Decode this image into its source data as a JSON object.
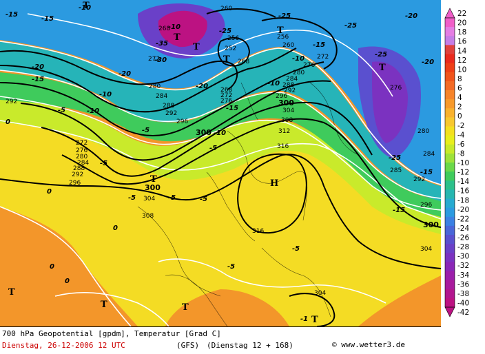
{
  "title": "700 hPa Geopotential [gpdm], Temperatur [Grad C]",
  "date_line": "Dienstag, 26-12-2006  12 UTC",
  "model": "(GFS)",
  "run": "(Dienstag 12 + 168)",
  "copyright": "www.wetter3.de",
  "colorbar": {
    "labels": [
      "22",
      "20",
      "18",
      "16",
      "14",
      "12",
      "10",
      "8",
      "6",
      "4",
      "2",
      "0",
      "-2",
      "-4",
      "-6",
      "-8",
      "-10",
      "-12",
      "-14",
      "-16",
      "-18",
      "-20",
      "-22",
      "-24",
      "-26",
      "-28",
      "-30",
      "-32",
      "-34",
      "-36",
      "-38",
      "-40",
      "-42"
    ],
    "colors": [
      "#f05ec8",
      "#e47de3",
      "#c57de6",
      "#e0413c",
      "#ea2a1d",
      "#ee3f17",
      "#f0541b",
      "#f36b26",
      "#f6842a",
      "#f79a2c",
      "#f9b22f",
      "#f8c82f",
      "#f4e020",
      "#e8ee1c",
      "#c8ea2a",
      "#9ee23a",
      "#6ad84a",
      "#3fcb5c",
      "#2cc08a",
      "#25b6b0",
      "#26aad0",
      "#2b9ae0",
      "#3b80e3",
      "#4a66d8",
      "#5a50cf",
      "#6a40c8",
      "#7b32c0",
      "#8a26b6",
      "#9b1eaa",
      "#a81a9c",
      "#b2168e",
      "#bc1282"
    ]
  },
  "map_labels": {
    "geopotential": [
      {
        "text": "260"
      },
      {
        "text": "256"
      },
      {
        "text": "252"
      },
      {
        "text": "256"
      },
      {
        "text": "260"
      },
      {
        "text": "268"
      },
      {
        "text": "272"
      },
      {
        "text": "276"
      },
      {
        "text": "280"
      },
      {
        "text": "284"
      },
      {
        "text": "288"
      },
      {
        "text": "292"
      },
      {
        "text": "296"
      },
      {
        "text": "300"
      },
      {
        "text": "304"
      },
      {
        "text": "308"
      },
      {
        "text": "312"
      },
      {
        "text": "316"
      },
      {
        "text": "268"
      },
      {
        "text": "272"
      },
      {
        "text": "292"
      },
      {
        "text": "272"
      },
      {
        "text": "276"
      },
      {
        "text": "280"
      },
      {
        "text": "284"
      },
      {
        "text": "288"
      },
      {
        "text": "292"
      },
      {
        "text": "296"
      },
      {
        "text": "280"
      },
      {
        "text": "284"
      },
      {
        "text": "288"
      },
      {
        "text": "292"
      },
      {
        "text": "296"
      },
      {
        "text": "268"
      },
      {
        "text": "272"
      },
      {
        "text": "276"
      },
      {
        "text": "276"
      },
      {
        "text": "280"
      },
      {
        "text": "284"
      },
      {
        "text": "285"
      },
      {
        "text": "292"
      },
      {
        "text": "296"
      },
      {
        "text": "304"
      },
      {
        "text": "304"
      },
      {
        "text": "308"
      },
      {
        "text": "316"
      },
      {
        "text": "304"
      },
      {
        "text": "300"
      },
      {
        "text": "300"
      },
      {
        "text": "300"
      }
    ],
    "temperature": [
      {
        "text": "-15"
      },
      {
        "text": "-10"
      },
      {
        "text": "-15"
      },
      {
        "text": "-20"
      },
      {
        "text": "-25"
      },
      {
        "text": "-25"
      },
      {
        "text": "-25"
      },
      {
        "text": "-20"
      },
      {
        "text": "-25"
      },
      {
        "text": "-20"
      },
      {
        "text": "-15"
      },
      {
        "text": "-10"
      },
      {
        "text": "-20"
      },
      {
        "text": "-15"
      },
      {
        "text": "-10"
      },
      {
        "text": "-5"
      },
      {
        "text": "-10"
      },
      {
        "text": "-5"
      },
      {
        "text": "-5"
      },
      {
        "text": "-5"
      },
      {
        "text": "-5"
      },
      {
        "text": "-5"
      },
      {
        "text": "-5"
      },
      {
        "text": "-5"
      },
      {
        "text": "0"
      },
      {
        "text": "0"
      },
      {
        "text": "0"
      },
      {
        "text": "0"
      },
      {
        "text": "0"
      },
      {
        "text": "-1"
      },
      {
        "text": "-15"
      },
      {
        "text": "-15"
      },
      {
        "text": "-25"
      },
      {
        "text": "-20"
      },
      {
        "text": "-10"
      },
      {
        "text": "-5"
      },
      {
        "text": "-15"
      },
      {
        "text": "-10"
      },
      {
        "text": "-30"
      },
      {
        "text": "-35"
      },
      {
        "text": "-10"
      }
    ],
    "pressure_centers": [
      {
        "text": "T"
      },
      {
        "text": "T"
      },
      {
        "text": "T"
      },
      {
        "text": "T"
      },
      {
        "text": "T"
      },
      {
        "text": "T"
      },
      {
        "text": "T"
      },
      {
        "text": "T"
      },
      {
        "text": "T"
      },
      {
        "text": "H"
      },
      {
        "text": "T"
      },
      {
        "text": "T"
      }
    ]
  }
}
